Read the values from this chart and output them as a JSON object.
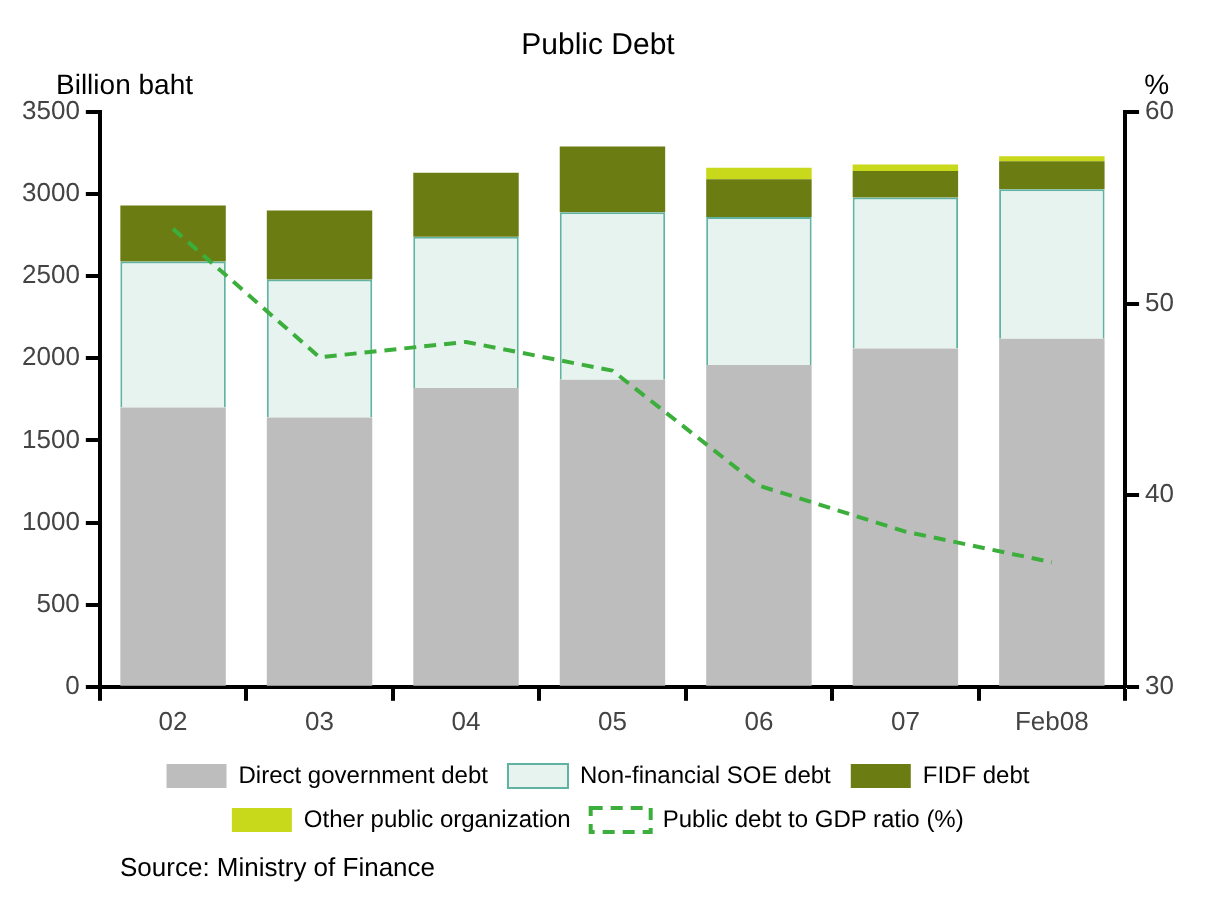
{
  "chart_data": {
    "type": "bar",
    "title": "Public Debt",
    "ylabel": "Billion baht",
    "y2label": "%",
    "categories": [
      "02",
      "03",
      "04",
      "05",
      "06",
      "07",
      "Feb08"
    ],
    "stacked": true,
    "series": [
      {
        "name": "Direct government debt",
        "color": "#bdbdbd",
        "values": [
          1700,
          1640,
          1820,
          1870,
          1960,
          2060,
          2120
        ]
      },
      {
        "name": "Non-financial SOE debt",
        "color": "#e6f3ee",
        "values": [
          890,
          840,
          920,
          1020,
          900,
          920,
          910
        ]
      },
      {
        "name": "FIDF debt",
        "color": "#6b7d12",
        "values": [
          340,
          420,
          390,
          400,
          230,
          160,
          170
        ]
      },
      {
        "name": "Other public organization",
        "color": "#c8d81a",
        "values": [
          0,
          0,
          0,
          0,
          70,
          40,
          30
        ]
      },
      {
        "name": "Public debt to GDP ratio (%)",
        "type": "line",
        "axis": "y2",
        "color": "#3cae3c",
        "line_style": "dashed",
        "marker": "none",
        "values": [
          53.9,
          47.2,
          48.0,
          46.5,
          40.5,
          38.1,
          36.5
        ]
      }
    ],
    "ylim": [
      0,
      3500
    ],
    "yticks": [
      0,
      500,
      1000,
      1500,
      2000,
      2500,
      3000,
      3500
    ],
    "y2lim": [
      30,
      60
    ],
    "y2ticks": [
      30,
      40,
      50,
      60
    ],
    "grid": false,
    "legend": "bottom",
    "annotations": [
      "Source: Ministry of Finance"
    ]
  }
}
